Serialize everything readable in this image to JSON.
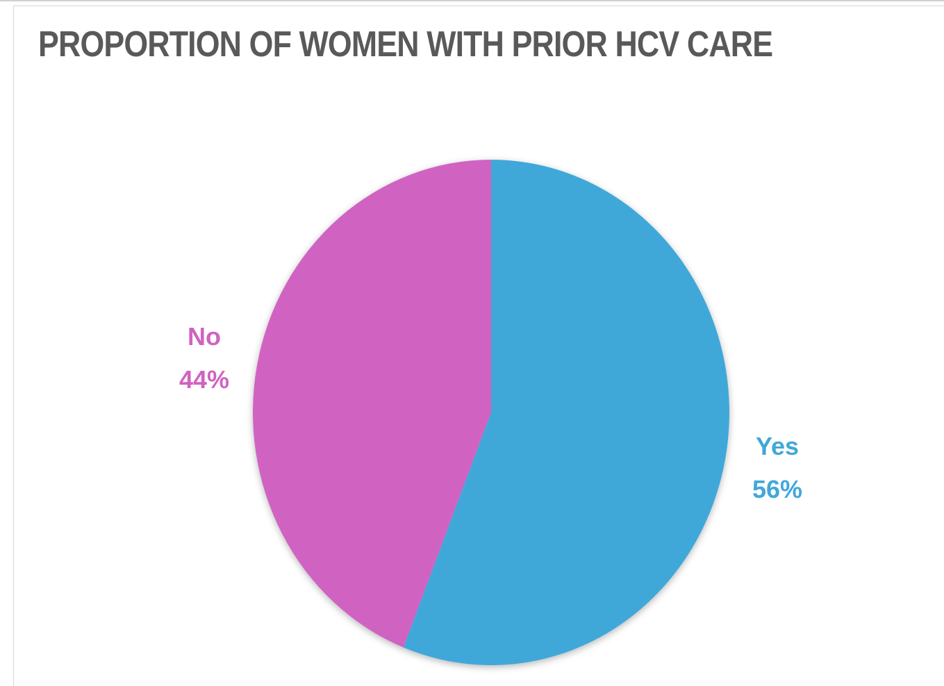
{
  "chart_data": {
    "type": "pie",
    "title": "PROPORTION OF WOMEN WITH PRIOR HCV CARE",
    "categories": [
      "Yes",
      "No"
    ],
    "values": [
      56,
      44
    ],
    "value_labels": [
      "56%",
      "44%"
    ],
    "colors": [
      "#41a8d9",
      "#d063c1"
    ],
    "legend": "none",
    "start_angle": "12 o'clock",
    "direction": "clockwise",
    "data_labels": "outside"
  }
}
